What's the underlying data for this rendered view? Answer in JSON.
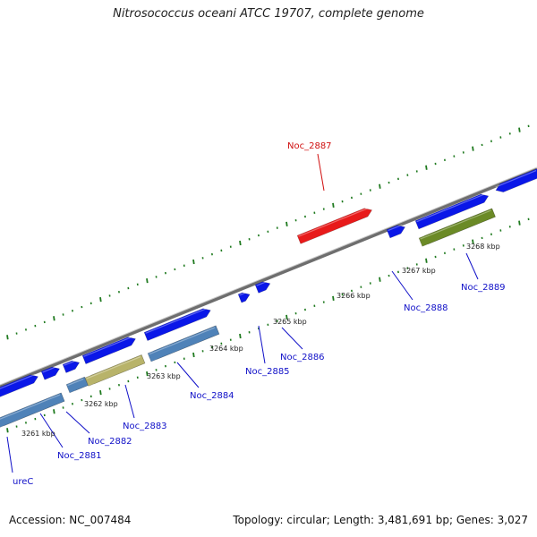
{
  "header": {
    "title": "Nitrosococcus oceani ATCC 19707, complete genome"
  },
  "footer": {
    "accession": "Accession: NC_007484",
    "topology": "Topology: circular; Length: 3,481,691 bp; Genes: 3,027"
  },
  "colors": {
    "backbone": "#8c8c8c",
    "forward_gene": "#0a17e8",
    "reverse_gene": "#4f82b8",
    "highlighted_gene": "#e81a1a",
    "olive_gene": "#b8b36a",
    "green_gene": "#6b8a26",
    "tick": "#1f7a1f",
    "label_blue": "#1010c8",
    "label_red": "#d01010"
  },
  "ruler": {
    "labels": [
      "3261 kbp",
      "3262 kbp",
      "3263 kbp",
      "3264 kbp",
      "3265 kbp",
      "3266 kbp",
      "3267 kbp",
      "3268 kbp"
    ]
  },
  "gene_labels": [
    "ureC",
    "Noc_2881",
    "Noc_2882",
    "Noc_2883",
    "Noc_2884",
    "Noc_2885",
    "Noc_2886",
    "Noc_2887",
    "Noc_2888",
    "Noc_2889"
  ]
}
